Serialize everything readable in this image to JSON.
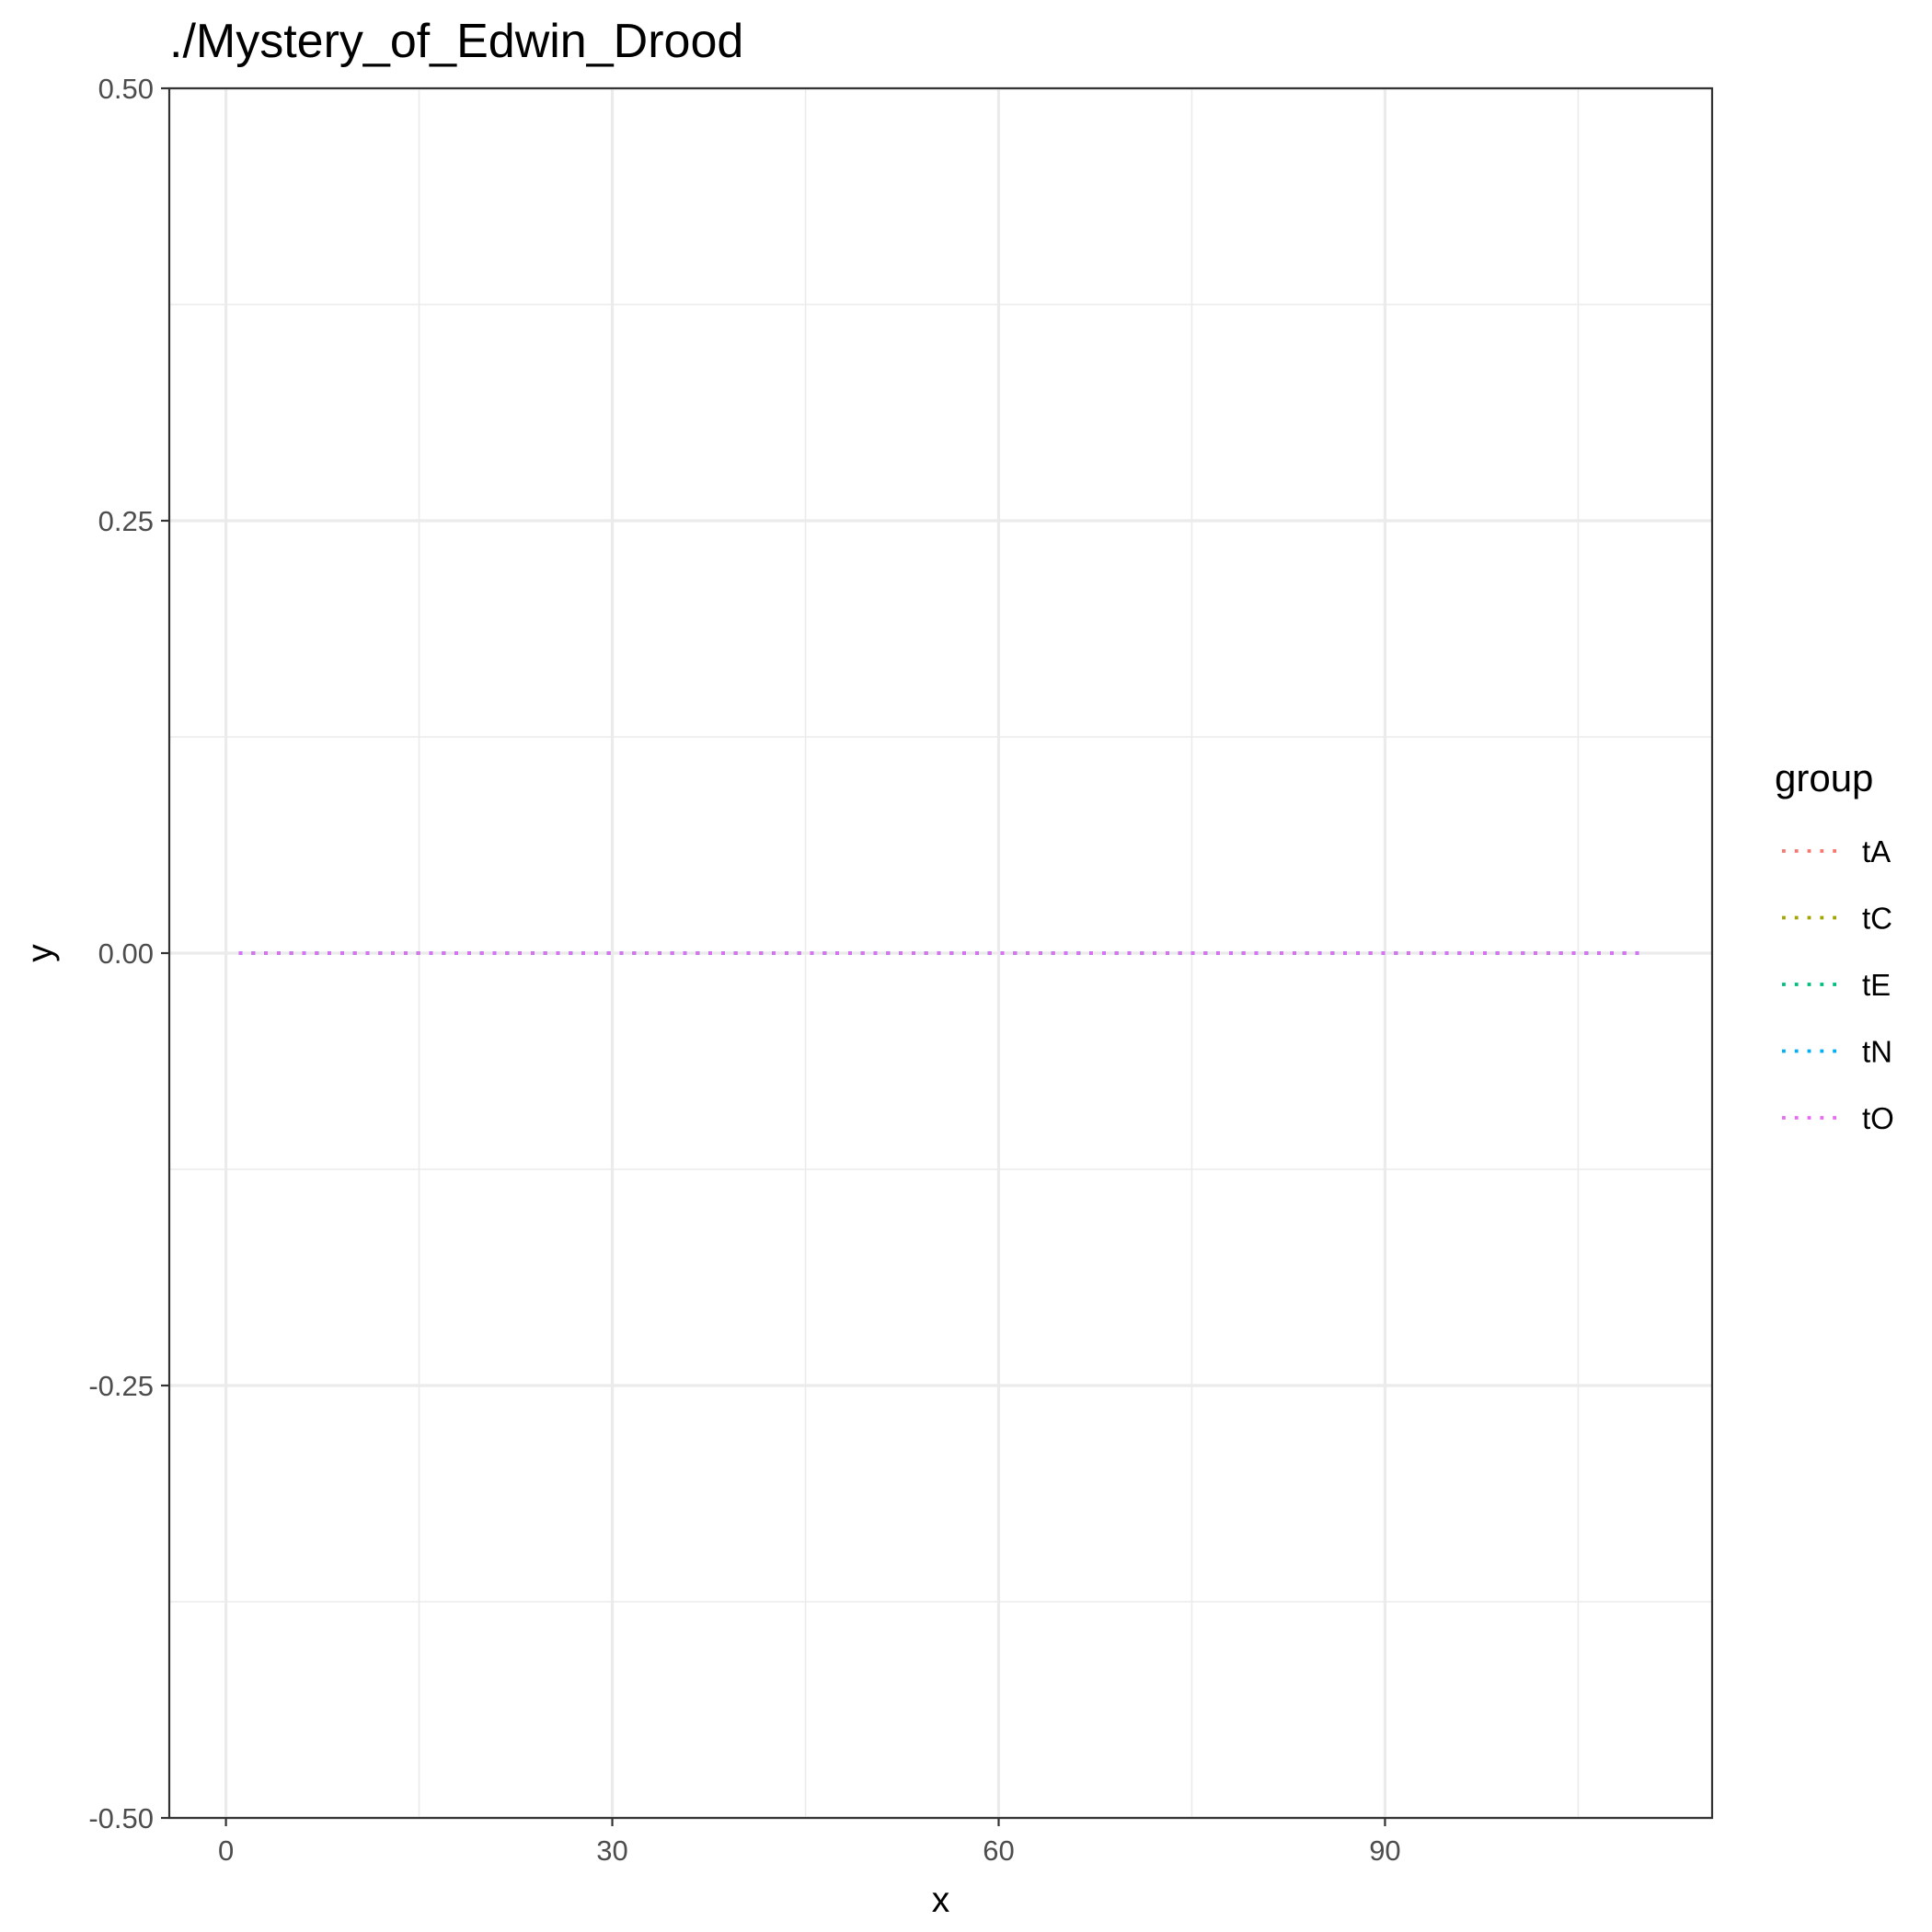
{
  "chart_data": {
    "type": "line",
    "title": "./Mystery_of_Edwin_Drood",
    "xlabel": "x",
    "ylabel": "y",
    "xlim": [
      -4.4,
      115.4
    ],
    "ylim": [
      -0.5,
      0.5
    ],
    "x_ticks": [
      0,
      30,
      60,
      90
    ],
    "x_tick_labels": [
      "0",
      "30",
      "60",
      "90"
    ],
    "y_ticks": [
      -0.5,
      -0.25,
      0,
      0.25,
      0.5
    ],
    "y_tick_labels": [
      "-0.50",
      "-0.25",
      "0.00",
      "0.25",
      "0.50"
    ],
    "grid": true,
    "line_style": "dotted",
    "legend": {
      "title": "group",
      "placement": "right"
    },
    "series": [
      {
        "name": "tA",
        "color": "#F8766D",
        "x": [
          1,
          110
        ],
        "y": [
          0,
          0
        ]
      },
      {
        "name": "tC",
        "color": "#A3A500",
        "x": [
          1,
          110
        ],
        "y": [
          0,
          0
        ]
      },
      {
        "name": "tE",
        "color": "#00BF7D",
        "x": [
          1,
          110
        ],
        "y": [
          0,
          0
        ]
      },
      {
        "name": "tN",
        "color": "#00B0F6",
        "x": [
          1,
          110
        ],
        "y": [
          0,
          0
        ]
      },
      {
        "name": "tO",
        "color": "#E76BF3",
        "x": [
          1,
          110
        ],
        "y": [
          0,
          0
        ]
      }
    ]
  }
}
